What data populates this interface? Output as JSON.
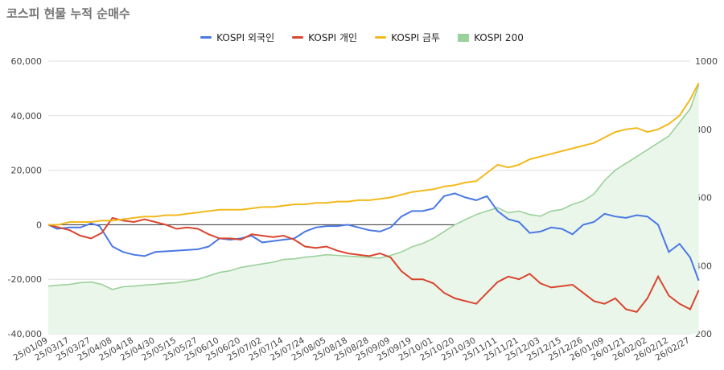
{
  "chart_data": {
    "type": "line",
    "title": "코스피 현물 누적 순매수",
    "xlabel": "",
    "ylabel": "",
    "ylim": [
      -40000,
      60000
    ],
    "y_ticks": [
      -40000,
      -20000,
      0,
      20000,
      40000,
      60000
    ],
    "y2lim": [
      200,
      1000
    ],
    "y2_ticks": [
      200,
      400,
      600,
      800,
      1000
    ],
    "x_tick_labels": [
      "25/01/09",
      "25/03/17",
      "25/03/27",
      "25/04/08",
      "25/04/18",
      "25/04/30",
      "25/05/15",
      "25/05/27",
      "25/06/10",
      "25/06/20",
      "25/07/02",
      "25/07/14",
      "25/07/24",
      "25/08/05",
      "25/08/18",
      "25/08/28",
      "25/09/09",
      "25/09/19",
      "25/10/01",
      "25/10/20",
      "25/10/30",
      "25/11/11",
      "25/11/21",
      "25/12/03",
      "25/12/15",
      "25/12/26",
      "26/01/09",
      "26/01/21",
      "26/02/02",
      "26/02/12",
      "26/02/27"
    ],
    "legend_position": "top",
    "grid": true,
    "series": [
      {
        "name": "KOSPI 외국인",
        "color": "#4a78e4",
        "axis": "left",
        "type": "line",
        "points": [
          [
            0,
            0
          ],
          [
            0.4,
            -1500
          ],
          [
            1,
            -1000
          ],
          [
            1.5,
            -1000
          ],
          [
            2,
            500
          ],
          [
            2.4,
            -500
          ],
          [
            3,
            -8000
          ],
          [
            3.5,
            -10000
          ],
          [
            4,
            -11000
          ],
          [
            4.5,
            -11500
          ],
          [
            5,
            -10000
          ],
          [
            6,
            -9500
          ],
          [
            7,
            -9000
          ],
          [
            7.5,
            -8000
          ],
          [
            8,
            -5000
          ],
          [
            8.5,
            -5500
          ],
          [
            9,
            -5000
          ],
          [
            9.5,
            -4000
          ],
          [
            10,
            -6500
          ],
          [
            10.5,
            -6000
          ],
          [
            11,
            -5500
          ],
          [
            11.5,
            -5000
          ],
          [
            12,
            -2500
          ],
          [
            12.5,
            -1000
          ],
          [
            13,
            -500
          ],
          [
            13.5,
            -500
          ],
          [
            14,
            0
          ],
          [
            14.5,
            -1000
          ],
          [
            15,
            -2000
          ],
          [
            15.5,
            -2500
          ],
          [
            16,
            -1000
          ],
          [
            16.5,
            3000
          ],
          [
            17,
            5000
          ],
          [
            17.5,
            5000
          ],
          [
            18,
            6000
          ],
          [
            18.5,
            10500
          ],
          [
            19,
            11500
          ],
          [
            19.5,
            10000
          ],
          [
            20,
            9000
          ],
          [
            20.5,
            10500
          ],
          [
            21,
            5000
          ],
          [
            21.5,
            2000
          ],
          [
            22,
            1000
          ],
          [
            22.5,
            -3000
          ],
          [
            23,
            -2500
          ],
          [
            23.5,
            -1000
          ],
          [
            24,
            -1500
          ],
          [
            24.5,
            -3500
          ],
          [
            25,
            0
          ],
          [
            25.5,
            1000
          ],
          [
            26,
            4000
          ],
          [
            26.5,
            3000
          ],
          [
            27,
            2500
          ],
          [
            27.5,
            3500
          ],
          [
            28,
            3000
          ],
          [
            28.5,
            0
          ],
          [
            29,
            -10000
          ],
          [
            29.5,
            -7000
          ],
          [
            30,
            -12000
          ],
          [
            30.4,
            -20500
          ]
        ]
      },
      {
        "name": "KOSPI 개인",
        "color": "#d9452f",
        "axis": "left",
        "type": "line",
        "points": [
          [
            0,
            0
          ],
          [
            0.5,
            -1000
          ],
          [
            1,
            -2000
          ],
          [
            1.5,
            -4000
          ],
          [
            2,
            -5000
          ],
          [
            2.5,
            -3000
          ],
          [
            3,
            2500
          ],
          [
            3.5,
            1500
          ],
          [
            4,
            1000
          ],
          [
            4.5,
            2000
          ],
          [
            5,
            1000
          ],
          [
            5.5,
            0
          ],
          [
            6,
            -1500
          ],
          [
            6.5,
            -1000
          ],
          [
            7,
            -1500
          ],
          [
            7.5,
            -3500
          ],
          [
            8,
            -5000
          ],
          [
            8.5,
            -5000
          ],
          [
            9,
            -5500
          ],
          [
            9.5,
            -3500
          ],
          [
            10,
            -4000
          ],
          [
            10.5,
            -4500
          ],
          [
            11,
            -4000
          ],
          [
            11.5,
            -5500
          ],
          [
            12,
            -8000
          ],
          [
            12.5,
            -8500
          ],
          [
            13,
            -8000
          ],
          [
            13.5,
            -9500
          ],
          [
            14,
            -10500
          ],
          [
            14.5,
            -11000
          ],
          [
            15,
            -11500
          ],
          [
            15.5,
            -10500
          ],
          [
            16,
            -12000
          ],
          [
            16.5,
            -17000
          ],
          [
            17,
            -20000
          ],
          [
            17.5,
            -20000
          ],
          [
            18,
            -21500
          ],
          [
            18.5,
            -25000
          ],
          [
            19,
            -27000
          ],
          [
            19.5,
            -28000
          ],
          [
            20,
            -29000
          ],
          [
            20.5,
            -25000
          ],
          [
            21,
            -21000
          ],
          [
            21.5,
            -19000
          ],
          [
            22,
            -20000
          ],
          [
            22.5,
            -18000
          ],
          [
            23,
            -21500
          ],
          [
            23.5,
            -23000
          ],
          [
            24,
            -22500
          ],
          [
            24.5,
            -22000
          ],
          [
            25,
            -25000
          ],
          [
            25.5,
            -28000
          ],
          [
            26,
            -29000
          ],
          [
            26.5,
            -27000
          ],
          [
            27,
            -31000
          ],
          [
            27.5,
            -32000
          ],
          [
            28,
            -27000
          ],
          [
            28.5,
            -19000
          ],
          [
            29,
            -26000
          ],
          [
            29.5,
            -29000
          ],
          [
            30,
            -31000
          ],
          [
            30.4,
            -24000
          ]
        ]
      },
      {
        "name": "KOSPI 금투",
        "color": "#f2b91c",
        "axis": "left",
        "type": "line",
        "points": [
          [
            0,
            0
          ],
          [
            0.5,
            0
          ],
          [
            1,
            1000
          ],
          [
            1.5,
            1000
          ],
          [
            2,
            1000
          ],
          [
            2.5,
            1500
          ],
          [
            3,
            1500
          ],
          [
            3.5,
            2000
          ],
          [
            4,
            2500
          ],
          [
            4.5,
            3000
          ],
          [
            5,
            3000
          ],
          [
            5.5,
            3500
          ],
          [
            6,
            3500
          ],
          [
            6.5,
            4000
          ],
          [
            7,
            4500
          ],
          [
            7.5,
            5000
          ],
          [
            8,
            5500
          ],
          [
            8.5,
            5500
          ],
          [
            9,
            5500
          ],
          [
            9.5,
            6000
          ],
          [
            10,
            6500
          ],
          [
            10.5,
            6500
          ],
          [
            11,
            7000
          ],
          [
            11.5,
            7500
          ],
          [
            12,
            7500
          ],
          [
            12.5,
            8000
          ],
          [
            13,
            8000
          ],
          [
            13.5,
            8500
          ],
          [
            14,
            8500
          ],
          [
            14.5,
            9000
          ],
          [
            15,
            9000
          ],
          [
            15.5,
            9500
          ],
          [
            16,
            10000
          ],
          [
            16.5,
            11000
          ],
          [
            17,
            12000
          ],
          [
            17.5,
            12500
          ],
          [
            18,
            13000
          ],
          [
            18.5,
            14000
          ],
          [
            19,
            14500
          ],
          [
            19.5,
            15500
          ],
          [
            20,
            16000
          ],
          [
            20.5,
            19000
          ],
          [
            21,
            22000
          ],
          [
            21.5,
            21000
          ],
          [
            22,
            22000
          ],
          [
            22.5,
            24000
          ],
          [
            23,
            25000
          ],
          [
            23.5,
            26000
          ],
          [
            24,
            27000
          ],
          [
            24.5,
            28000
          ],
          [
            25,
            29000
          ],
          [
            25.5,
            30000
          ],
          [
            26,
            32000
          ],
          [
            26.5,
            34000
          ],
          [
            27,
            35000
          ],
          [
            27.5,
            35500
          ],
          [
            28,
            34000
          ],
          [
            28.5,
            35000
          ],
          [
            29,
            37000
          ],
          [
            29.5,
            40000
          ],
          [
            30,
            46000
          ],
          [
            30.4,
            52000
          ]
        ]
      },
      {
        "name": "KOSPI 200",
        "color": "#9bd19b",
        "fill": "#eaf6ea",
        "axis": "right",
        "type": "area",
        "points": [
          [
            0,
            340
          ],
          [
            0.5,
            343
          ],
          [
            1,
            345
          ],
          [
            1.5,
            350
          ],
          [
            2,
            352
          ],
          [
            2.5,
            345
          ],
          [
            3,
            330
          ],
          [
            3.5,
            338
          ],
          [
            4,
            340
          ],
          [
            4.5,
            343
          ],
          [
            5,
            345
          ],
          [
            5.5,
            348
          ],
          [
            6,
            350
          ],
          [
            6.5,
            355
          ],
          [
            7,
            360
          ],
          [
            7.5,
            370
          ],
          [
            8,
            380
          ],
          [
            8.5,
            385
          ],
          [
            9,
            395
          ],
          [
            9.5,
            400
          ],
          [
            10,
            405
          ],
          [
            10.5,
            410
          ],
          [
            11,
            418
          ],
          [
            11.5,
            420
          ],
          [
            12,
            425
          ],
          [
            12.5,
            428
          ],
          [
            13,
            432
          ],
          [
            13.5,
            430
          ],
          [
            14,
            428
          ],
          [
            14.5,
            426
          ],
          [
            15,
            424
          ],
          [
            15.5,
            422
          ],
          [
            16,
            430
          ],
          [
            16.5,
            440
          ],
          [
            17,
            455
          ],
          [
            17.5,
            465
          ],
          [
            18,
            480
          ],
          [
            18.5,
            500
          ],
          [
            19,
            520
          ],
          [
            19.5,
            535
          ],
          [
            20,
            550
          ],
          [
            20.5,
            560
          ],
          [
            21,
            570
          ],
          [
            21.5,
            555
          ],
          [
            22,
            560
          ],
          [
            22.5,
            550
          ],
          [
            23,
            545
          ],
          [
            23.5,
            560
          ],
          [
            24,
            565
          ],
          [
            24.5,
            580
          ],
          [
            25,
            590
          ],
          [
            25.5,
            610
          ],
          [
            26,
            650
          ],
          [
            26.5,
            680
          ],
          [
            27,
            700
          ],
          [
            27.5,
            720
          ],
          [
            28,
            740
          ],
          [
            28.5,
            760
          ],
          [
            29,
            780
          ],
          [
            29.5,
            820
          ],
          [
            30,
            860
          ],
          [
            30.4,
            930
          ]
        ]
      }
    ]
  }
}
